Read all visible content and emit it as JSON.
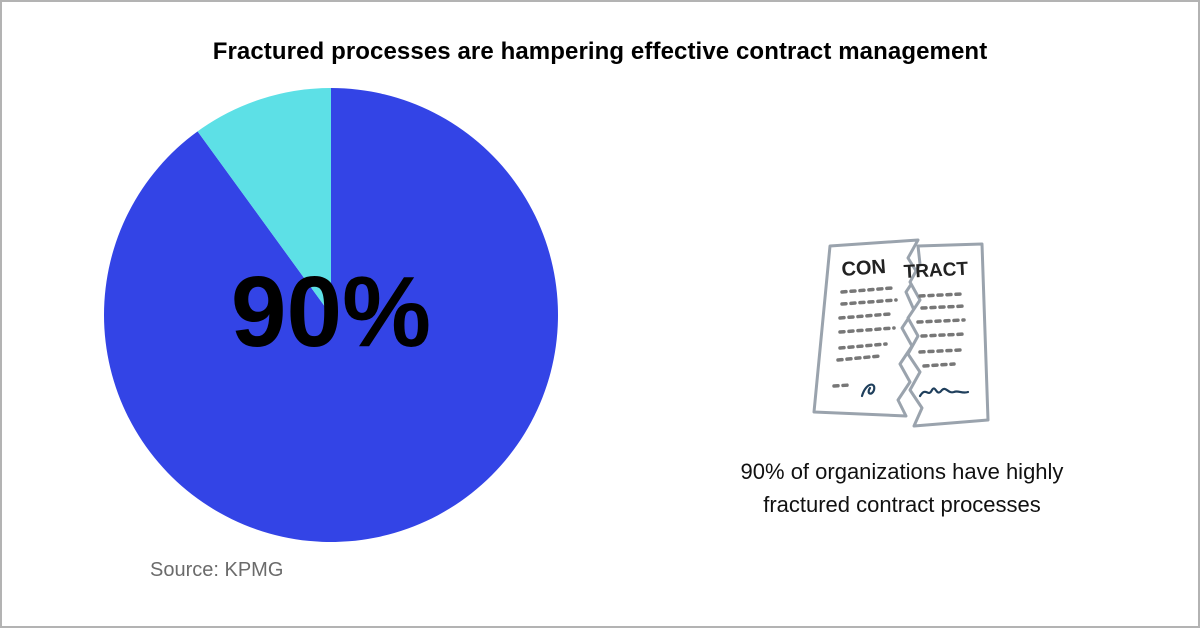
{
  "title": "Fractured processes are hampering effective contract management",
  "chart_data": {
    "type": "pie",
    "title": "Fractured processes are hampering effective contract management",
    "slices": [
      {
        "value": 90,
        "color": "#3344e6"
      },
      {
        "value": 10,
        "color": "#5de0e6"
      }
    ],
    "center_label": "90%"
  },
  "source": "Source: KPMG",
  "illustration": {
    "icon": "torn-contract-icon",
    "left_text": "CON",
    "right_text": "TRACT"
  },
  "caption": {
    "line1": "90% of organizations have highly",
    "line2": "fractured contract processes"
  }
}
